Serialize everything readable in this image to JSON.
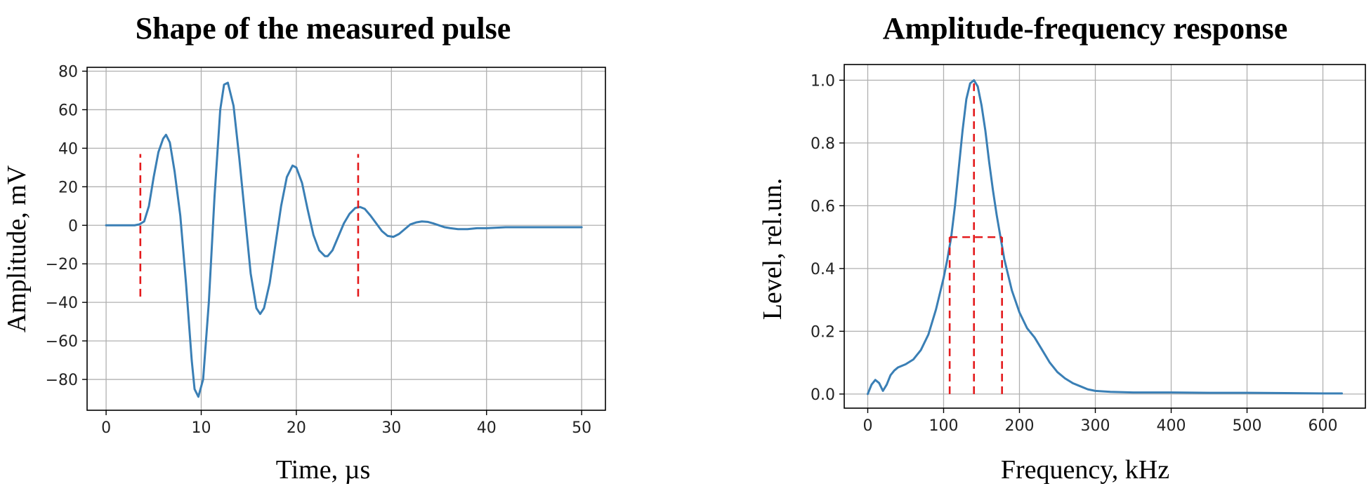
{
  "colors": {
    "series": "#3a7fb5",
    "reference": "#e41a1c"
  },
  "chart_data": [
    {
      "type": "line",
      "title": "Shape of the measured pulse",
      "xlabel": "Time, µs",
      "ylabel": "Amplitude, mV",
      "xlim": [
        -2,
        52.5
      ],
      "ylim": [
        -96,
        82
      ],
      "xticks": [
        0,
        10,
        20,
        30,
        40,
        50
      ],
      "yticks": [
        -80,
        -60,
        -40,
        -20,
        0,
        20,
        40,
        60,
        80
      ],
      "grid": true,
      "series": [
        {
          "x": [
            0,
            1,
            2,
            3,
            3.5,
            4,
            4.5,
            5,
            5.5,
            6,
            6.3,
            6.7,
            7.2,
            7.8,
            8.4,
            9,
            9.3,
            9.7,
            10.2,
            10.8,
            11.4,
            12,
            12.4,
            12.8,
            13.4,
            14,
            14.6,
            15.2,
            15.8,
            16.2,
            16.6,
            17.2,
            17.8,
            18.4,
            19,
            19.6,
            20,
            20.6,
            21.2,
            21.8,
            22.4,
            23,
            23.3,
            23.8,
            24.4,
            25,
            25.6,
            26.2,
            26.7,
            27.2,
            27.8,
            28.4,
            29,
            29.6,
            30.2,
            30.8,
            31.4,
            32,
            32.6,
            33.2,
            33.8,
            34.4,
            35,
            35.6,
            36.2,
            37,
            38,
            39,
            40,
            42,
            44,
            46,
            48,
            50
          ],
          "values": [
            0,
            0,
            0,
            0,
            0.5,
            2,
            10,
            25,
            38,
            45,
            47,
            43,
            28,
            5,
            -30,
            -70,
            -85,
            -89,
            -80,
            -40,
            15,
            60,
            73,
            74,
            62,
            35,
            5,
            -25,
            -43,
            -46,
            -43,
            -30,
            -10,
            10,
            25,
            31,
            30,
            22,
            8,
            -5,
            -13,
            -16,
            -16,
            -13,
            -6,
            1,
            6,
            9,
            9.5,
            8.5,
            5,
            1,
            -3,
            -5.5,
            -6,
            -4.5,
            -2,
            0.5,
            1.5,
            2,
            1.8,
            1,
            0,
            -1,
            -1.5,
            -2,
            -2,
            -1.5,
            -1.5,
            -1,
            -1,
            -1,
            -1,
            -1
          ]
        }
      ],
      "reference_lines": [
        {
          "x": 3.6,
          "y_range": [
            -37,
            37
          ]
        },
        {
          "x": 26.5,
          "y_range": [
            -37,
            37
          ]
        }
      ]
    },
    {
      "type": "line",
      "title": "Amplitude-frequency response",
      "xlabel": "Frequency, kHz",
      "ylabel": "Level, rel.un.",
      "xlim": [
        -31,
        656
      ],
      "ylim": [
        -0.045,
        1.05
      ],
      "xticks": [
        0,
        100,
        200,
        300,
        400,
        500,
        600
      ],
      "yticks": [
        0.0,
        0.2,
        0.4,
        0.6,
        0.8,
        1.0
      ],
      "grid": true,
      "series": [
        {
          "x": [
            0,
            5,
            10,
            15,
            20,
            25,
            30,
            35,
            40,
            50,
            60,
            70,
            80,
            90,
            100,
            105,
            110,
            115,
            120,
            125,
            130,
            135,
            140,
            145,
            150,
            155,
            160,
            165,
            170,
            175,
            180,
            190,
            200,
            210,
            220,
            230,
            240,
            250,
            260,
            270,
            280,
            290,
            300,
            320,
            350,
            400,
            450,
            500,
            550,
            600,
            625
          ],
          "values": [
            0.0,
            0.03,
            0.045,
            0.035,
            0.01,
            0.03,
            0.06,
            0.075,
            0.085,
            0.095,
            0.11,
            0.14,
            0.19,
            0.27,
            0.37,
            0.43,
            0.5,
            0.6,
            0.72,
            0.84,
            0.94,
            0.99,
            1.0,
            0.98,
            0.92,
            0.84,
            0.74,
            0.65,
            0.57,
            0.5,
            0.43,
            0.33,
            0.26,
            0.21,
            0.18,
            0.14,
            0.1,
            0.07,
            0.05,
            0.035,
            0.025,
            0.015,
            0.01,
            0.007,
            0.005,
            0.005,
            0.004,
            0.004,
            0.003,
            0.002,
            0.002
          ]
        }
      ],
      "reference_lines": [
        {
          "x": 108,
          "y_range": [
            0,
            0.5
          ]
        },
        {
          "x": 140,
          "y_range": [
            0,
            1.0
          ]
        },
        {
          "x": 177,
          "y_range": [
            0,
            0.5
          ]
        },
        {
          "y": 0.5,
          "x_range": [
            108,
            177
          ]
        }
      ]
    }
  ]
}
